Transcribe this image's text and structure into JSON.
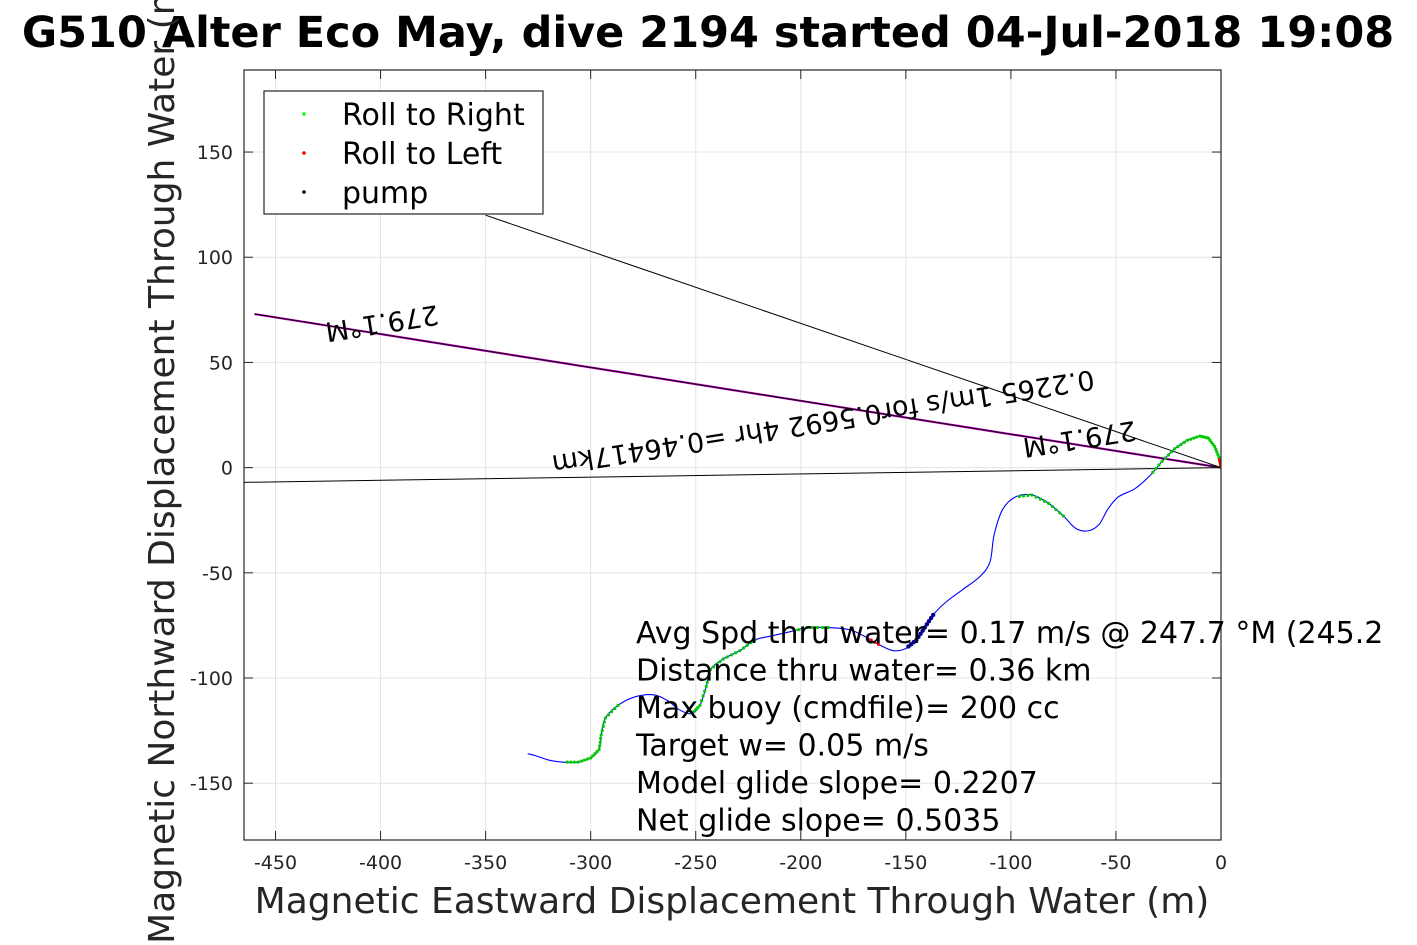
{
  "chart_data": {
    "type": "line",
    "title": "G510 Alter Eco May, dive 2194 started 04-Jul-2018 19:08",
    "xlabel": "Magnetic Eastward Displacement Through Water (m)",
    "ylabel": "Magnetic Northward Displacement Through Water (m)",
    "xlim": [
      -465,
      0
    ],
    "ylim": [
      -177,
      189
    ],
    "x_ticks": [
      -450,
      -400,
      -350,
      -300,
      -250,
      -200,
      -150,
      -100,
      -50,
      0
    ],
    "y_ticks": [
      -150,
      -100,
      -50,
      0,
      50,
      100,
      150
    ],
    "grid": true,
    "legend": {
      "placement": "top-left",
      "entries": [
        {
          "label": "Roll to Right",
          "color": "#00ff00"
        },
        {
          "label": "Roll to Left",
          "color": "#ff0000"
        },
        {
          "label": "pump",
          "color": "#000000"
        }
      ]
    },
    "track": {
      "color": "#0000ff",
      "points": [
        [
          0,
          0
        ],
        [
          -1,
          5
        ],
        [
          -3,
          10
        ],
        [
          -6,
          14
        ],
        [
          -10,
          15
        ],
        [
          -16,
          13
        ],
        [
          -22,
          9
        ],
        [
          -28,
          3
        ],
        [
          -34,
          -4
        ],
        [
          -41,
          -10
        ],
        [
          -49,
          -14
        ],
        [
          -54,
          -20
        ],
        [
          -58,
          -27
        ],
        [
          -63,
          -30
        ],
        [
          -69,
          -29
        ],
        [
          -75,
          -23
        ],
        [
          -82,
          -17
        ],
        [
          -90,
          -13
        ],
        [
          -98,
          -14
        ],
        [
          -104,
          -20
        ],
        [
          -108,
          -32
        ],
        [
          -110,
          -45
        ],
        [
          -115,
          -52
        ],
        [
          -123,
          -58
        ],
        [
          -131,
          -64
        ],
        [
          -137,
          -70
        ],
        [
          -141,
          -76
        ],
        [
          -145,
          -82
        ],
        [
          -150,
          -86
        ],
        [
          -156,
          -87
        ],
        [
          -163,
          -84
        ],
        [
          -170,
          -80
        ],
        [
          -177,
          -77
        ],
        [
          -187,
          -76
        ],
        [
          -197,
          -76
        ],
        [
          -205,
          -78
        ],
        [
          -214,
          -80
        ],
        [
          -222,
          -82
        ],
        [
          -229,
          -87
        ],
        [
          -237,
          -91
        ],
        [
          -243,
          -96
        ],
        [
          -245,
          -104
        ],
        [
          -248,
          -113
        ],
        [
          -252,
          -117
        ],
        [
          -258,
          -115
        ],
        [
          -263,
          -111
        ],
        [
          -270,
          -108
        ],
        [
          -279,
          -109
        ],
        [
          -287,
          -113
        ],
        [
          -293,
          -119
        ],
        [
          -295,
          -127
        ],
        [
          -296,
          -134
        ],
        [
          -300,
          -138
        ],
        [
          -306,
          -140
        ],
        [
          -313,
          -140
        ],
        [
          -320,
          -139
        ],
        [
          -326,
          -137
        ],
        [
          -330,
          -136
        ]
      ]
    },
    "roll_right_ranges": [
      [
        0,
        8
      ],
      [
        15,
        18
      ],
      [
        25,
        27
      ],
      [
        33,
        35
      ],
      [
        37,
        43
      ],
      [
        48,
        54
      ]
    ],
    "roll_left_ranges": [
      [
        0,
        1
      ],
      [
        30,
        31
      ]
    ],
    "pump_range": [
      25,
      28
    ],
    "lines": [
      {
        "from": [
          0,
          0
        ],
        "to": [
          -460,
          73
        ],
        "color": "#cc00cc"
      },
      {
        "from": [
          0,
          0
        ],
        "to": [
          -460,
          73
        ],
        "color": "#000000"
      },
      {
        "from": [
          0,
          0
        ],
        "to": [
          -350,
          120
        ],
        "color": "#000000"
      },
      {
        "from": [
          0,
          0
        ],
        "to": [
          -465,
          -7
        ],
        "color": "#000000"
      }
    ],
    "annotations": [
      {
        "text": "279.1°M",
        "x": -400,
        "y": 73,
        "rotate": 171
      },
      {
        "text": "0.2265 1m/s for0.5692 4hr =0.46417km",
        "x": -190,
        "y": 26,
        "rotate": 171
      },
      {
        "text": "279.1°M",
        "x": -68,
        "y": 18,
        "rotate": 171
      }
    ],
    "notes": [
      "Avg Spd thru water=  0.17 m/s @ 247.7 °M (245.2",
      "Distance thru water=  0.36 km",
      "Max buoy (cmdfile)= 200 cc",
      "Target w= 0.05 m/s",
      "Model glide slope= 0.2207",
      "Net glide slope= 0.5035"
    ]
  }
}
